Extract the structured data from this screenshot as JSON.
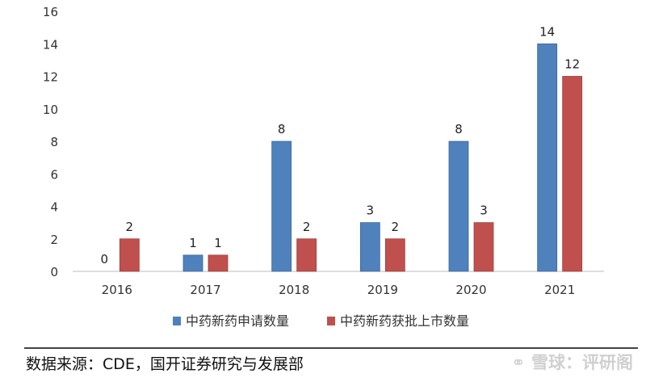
{
  "chart_data": {
    "type": "bar",
    "categories": [
      "2016",
      "2017",
      "2018",
      "2019",
      "2020",
      "2021"
    ],
    "series": [
      {
        "name": "中药新药申请数量",
        "values": [
          0,
          1,
          8,
          3,
          8,
          14
        ],
        "color": "#4F81BD"
      },
      {
        "name": "中药新药获批上市数量",
        "values": [
          2,
          1,
          2,
          2,
          3,
          12
        ],
        "color": "#C0504D"
      }
    ],
    "ylim": [
      0,
      16
    ],
    "yticks": [
      "0",
      "2",
      "4",
      "6",
      "8",
      "10",
      "12",
      "14",
      "16"
    ],
    "grid": false,
    "legend": "bottom"
  },
  "footer": {
    "source": "数据来源：CDE，国开证券研究与发展部",
    "watermark": "⚭ 雪球：评研阁"
  }
}
